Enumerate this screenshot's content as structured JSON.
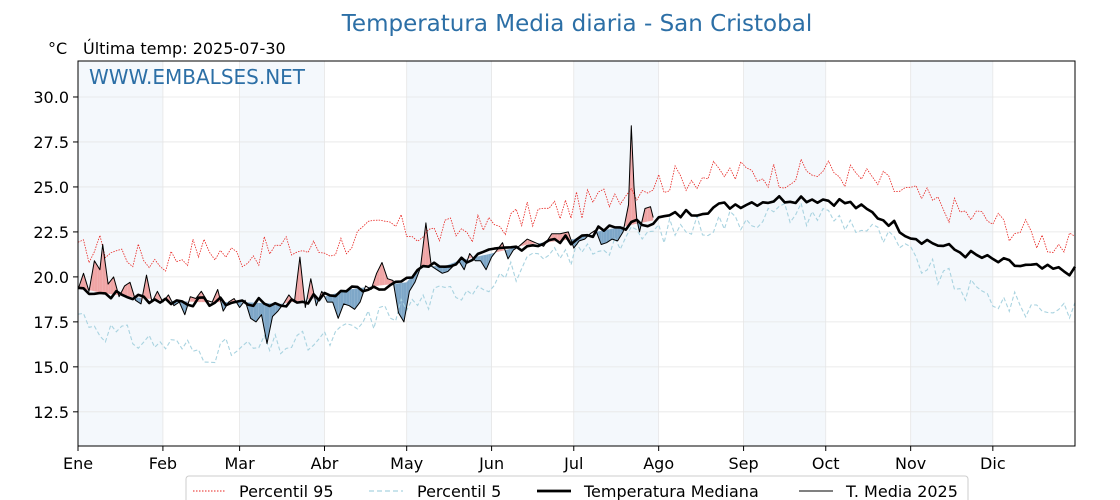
{
  "chart_data": {
    "type": "line",
    "title": "Temperatura Media diaria - San Cristobal",
    "unit_label": "°C",
    "last_update": "Última temp: 2025-07-30",
    "watermark": "WWW.EMBALSES.NET",
    "ylim": [
      10.6,
      32
    ],
    "yticks": [
      "12.5",
      "15.0",
      "17.5",
      "20.0",
      "22.5",
      "25.0",
      "27.5",
      "30.0"
    ],
    "xlim": [
      1,
      365
    ],
    "month_labels": [
      "Ene",
      "Feb",
      "Mar",
      "Abr",
      "May",
      "Jun",
      "Jul",
      "Ago",
      "Sep",
      "Oct",
      "Nov",
      "Dic"
    ],
    "month_starts": [
      1,
      32,
      60,
      91,
      121,
      152,
      182,
      213,
      244,
      274,
      305,
      335
    ],
    "grid": true,
    "legend_position": "bottom",
    "colors": {
      "title": "#2c6fa6",
      "p95": "#e8231f",
      "p5": "#a9d3e0",
      "median": "#000000",
      "current": "#000000",
      "above_fill": "#f0a5a5",
      "below_fill": "#7ea7c8",
      "band": "#f4f8fc"
    },
    "series": [
      {
        "name": "Percentil 95",
        "style": "dotted",
        "points": [
          [
            1,
            21.3
          ],
          [
            10,
            21.7
          ],
          [
            20,
            21.2
          ],
          [
            32,
            20.9
          ],
          [
            45,
            21.6
          ],
          [
            60,
            21.2
          ],
          [
            75,
            21.6
          ],
          [
            91,
            21.5
          ],
          [
            105,
            22.3
          ],
          [
            115,
            22.9
          ],
          [
            121,
            22.6
          ],
          [
            130,
            22.4
          ],
          [
            140,
            22.6
          ],
          [
            152,
            22.8
          ],
          [
            165,
            23.4
          ],
          [
            182,
            23.9
          ],
          [
            190,
            24.2
          ],
          [
            200,
            24.9
          ],
          [
            213,
            25.3
          ],
          [
            225,
            25.6
          ],
          [
            244,
            25.8
          ],
          [
            260,
            25.7
          ],
          [
            274,
            25.9
          ],
          [
            285,
            25.6
          ],
          [
            295,
            25.2
          ],
          [
            305,
            24.6
          ],
          [
            315,
            24.0
          ],
          [
            325,
            23.5
          ],
          [
            335,
            23.1
          ],
          [
            345,
            22.6
          ],
          [
            355,
            22.0
          ],
          [
            365,
            21.6
          ]
        ]
      },
      {
        "name": "Percentil 5",
        "style": "dashed",
        "points": [
          [
            1,
            18.0
          ],
          [
            10,
            17.1
          ],
          [
            20,
            16.6
          ],
          [
            32,
            16.3
          ],
          [
            45,
            15.9
          ],
          [
            60,
            15.9
          ],
          [
            75,
            16.2
          ],
          [
            91,
            16.4
          ],
          [
            100,
            17.0
          ],
          [
            110,
            17.8
          ],
          [
            121,
            18.4
          ],
          [
            130,
            18.8
          ],
          [
            140,
            19.3
          ],
          [
            152,
            19.9
          ],
          [
            165,
            20.6
          ],
          [
            182,
            21.3
          ],
          [
            195,
            21.9
          ],
          [
            213,
            22.5
          ],
          [
            230,
            22.9
          ],
          [
            244,
            23.3
          ],
          [
            260,
            23.6
          ],
          [
            274,
            23.5
          ],
          [
            285,
            22.9
          ],
          [
            295,
            22.2
          ],
          [
            305,
            21.1
          ],
          [
            315,
            20.1
          ],
          [
            325,
            19.3
          ],
          [
            335,
            18.8
          ],
          [
            345,
            18.4
          ],
          [
            355,
            18.3
          ],
          [
            365,
            18.4
          ]
        ]
      },
      {
        "name": "Temperatura Mediana",
        "style": "thick",
        "points": [
          [
            1,
            19.4
          ],
          [
            10,
            19.1
          ],
          [
            20,
            18.9
          ],
          [
            32,
            18.7
          ],
          [
            45,
            18.6
          ],
          [
            60,
            18.6
          ],
          [
            75,
            18.5
          ],
          [
            91,
            18.9
          ],
          [
            100,
            19.3
          ],
          [
            110,
            19.5
          ],
          [
            121,
            19.7
          ],
          [
            126,
            20.6
          ],
          [
            135,
            20.6
          ],
          [
            140,
            20.9
          ],
          [
            152,
            21.3
          ],
          [
            165,
            21.8
          ],
          [
            182,
            22.1
          ],
          [
            190,
            22.5
          ],
          [
            200,
            22.8
          ],
          [
            213,
            23.2
          ],
          [
            225,
            23.6
          ],
          [
            235,
            23.9
          ],
          [
            244,
            24.1
          ],
          [
            255,
            24.3
          ],
          [
            265,
            24.4
          ],
          [
            274,
            24.3
          ],
          [
            282,
            24.1
          ],
          [
            290,
            23.6
          ],
          [
            298,
            23.0
          ],
          [
            305,
            22.3
          ],
          [
            315,
            21.8
          ],
          [
            325,
            21.3
          ],
          [
            335,
            20.9
          ],
          [
            345,
            20.6
          ],
          [
            355,
            20.4
          ],
          [
            365,
            20.3
          ]
        ]
      },
      {
        "name": "T. Media 2025",
        "style": "thin",
        "points": [
          [
            1,
            19.3
          ],
          [
            3,
            20.2
          ],
          [
            5,
            19.2
          ],
          [
            7,
            20.9
          ],
          [
            9,
            20.4
          ],
          [
            10,
            21.8
          ],
          [
            12,
            19.6
          ],
          [
            14,
            20.0
          ],
          [
            16,
            18.9
          ],
          [
            18,
            19.5
          ],
          [
            20,
            19.7
          ],
          [
            22,
            18.7
          ],
          [
            24,
            18.5
          ],
          [
            26,
            20.1
          ],
          [
            28,
            18.6
          ],
          [
            30,
            19.2
          ],
          [
            32,
            18.6
          ],
          [
            34,
            19.0
          ],
          [
            36,
            18.4
          ],
          [
            38,
            18.6
          ],
          [
            40,
            17.9
          ],
          [
            42,
            18.9
          ],
          [
            44,
            18.8
          ],
          [
            46,
            19.2
          ],
          [
            48,
            18.7
          ],
          [
            50,
            18.6
          ],
          [
            52,
            19.3
          ],
          [
            54,
            18.1
          ],
          [
            56,
            18.6
          ],
          [
            58,
            18.8
          ],
          [
            60,
            18.3
          ],
          [
            62,
            18.7
          ],
          [
            64,
            17.7
          ],
          [
            66,
            17.5
          ],
          [
            68,
            17.9
          ],
          [
            70,
            16.3
          ],
          [
            72,
            17.8
          ],
          [
            74,
            18.1
          ],
          [
            76,
            18.5
          ],
          [
            78,
            19.0
          ],
          [
            80,
            18.6
          ],
          [
            82,
            21.1
          ],
          [
            84,
            18.3
          ],
          [
            86,
            19.9
          ],
          [
            88,
            18.4
          ],
          [
            90,
            19.2
          ],
          [
            92,
            18.6
          ],
          [
            94,
            18.6
          ],
          [
            96,
            17.7
          ],
          [
            98,
            18.5
          ],
          [
            100,
            18.4
          ],
          [
            102,
            18.2
          ],
          [
            104,
            18.6
          ],
          [
            106,
            19.5
          ],
          [
            108,
            19.3
          ],
          [
            110,
            20.2
          ],
          [
            112,
            20.8
          ],
          [
            114,
            19.9
          ],
          [
            116,
            19.8
          ],
          [
            118,
            18.0
          ],
          [
            120,
            17.5
          ],
          [
            122,
            19.2
          ],
          [
            124,
            19.7
          ],
          [
            126,
            20.5
          ],
          [
            128,
            23.0
          ],
          [
            130,
            20.6
          ],
          [
            132,
            20.4
          ],
          [
            134,
            20.2
          ],
          [
            136,
            20.3
          ],
          [
            138,
            20.6
          ],
          [
            140,
            20.9
          ],
          [
            142,
            20.4
          ],
          [
            144,
            21.3
          ],
          [
            146,
            20.9
          ],
          [
            148,
            20.9
          ],
          [
            150,
            20.4
          ],
          [
            152,
            21.1
          ],
          [
            154,
            21.5
          ],
          [
            156,
            21.9
          ],
          [
            158,
            21.0
          ],
          [
            160,
            21.5
          ],
          [
            162,
            21.7
          ],
          [
            165,
            22.1
          ],
          [
            168,
            21.9
          ],
          [
            171,
            21.7
          ],
          [
            174,
            22.4
          ],
          [
            177,
            22.4
          ],
          [
            180,
            22.5
          ],
          [
            182,
            21.6
          ],
          [
            184,
            22.0
          ],
          [
            186,
            22.1
          ],
          [
            188,
            22.4
          ],
          [
            190,
            22.6
          ],
          [
            192,
            21.8
          ],
          [
            194,
            21.9
          ],
          [
            196,
            22.1
          ],
          [
            198,
            22.0
          ],
          [
            200,
            22.5
          ],
          [
            202,
            24.0
          ],
          [
            203,
            28.4
          ],
          [
            204,
            25.0
          ],
          [
            205,
            23.2
          ],
          [
            206,
            22.5
          ],
          [
            208,
            23.8
          ],
          [
            210,
            23.9
          ],
          [
            211,
            23.3
          ]
        ]
      }
    ],
    "legend": [
      "Percentil 95",
      "Percentil 5",
      "Temperatura Mediana",
      "T. Media 2025"
    ]
  }
}
